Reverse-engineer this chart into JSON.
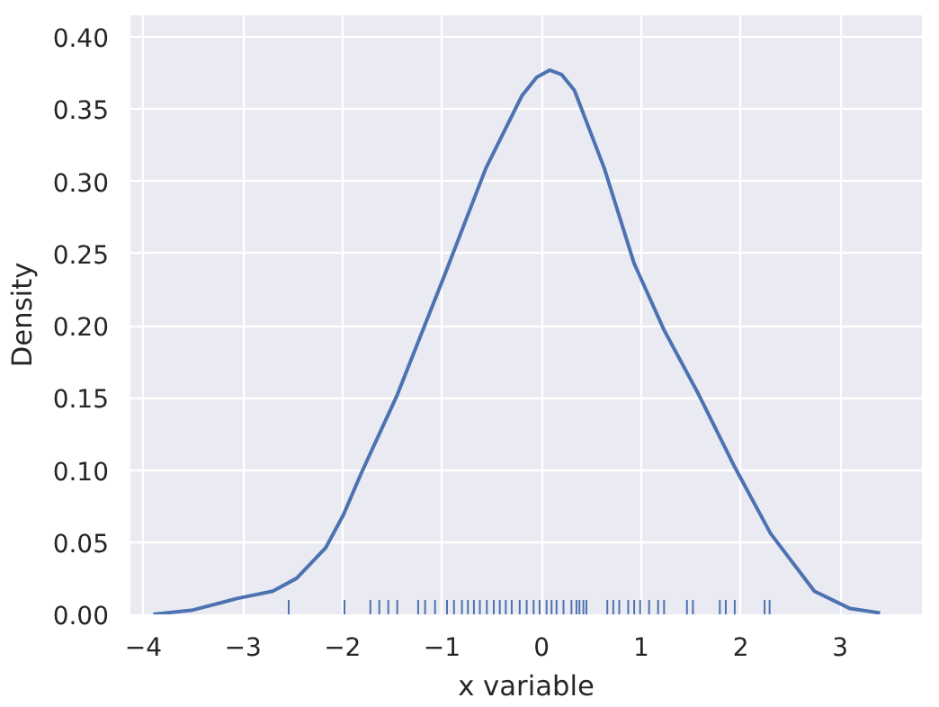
{
  "chart_data": {
    "type": "line",
    "xlabel": "x variable",
    "ylabel": "Density",
    "xlim": [
      -4.13,
      3.82
    ],
    "ylim": [
      0,
      0.415
    ],
    "xticks": [
      {
        "value": -4,
        "label": "−4"
      },
      {
        "value": -3,
        "label": "−3"
      },
      {
        "value": -2,
        "label": "−2"
      },
      {
        "value": -1,
        "label": "−1"
      },
      0,
      1,
      2,
      3
    ],
    "yticks": [
      {
        "value": 0,
        "label": "0.00"
      },
      {
        "value": 0.05,
        "label": "0.05"
      },
      {
        "value": 0.1,
        "label": "0.10"
      },
      {
        "value": 0.15,
        "label": "0.15"
      },
      {
        "value": 0.2,
        "label": "0.20"
      },
      {
        "value": 0.25,
        "label": "0.25"
      },
      {
        "value": 0.3,
        "label": "0.30"
      },
      {
        "value": 0.35,
        "label": "0.35"
      },
      {
        "value": 0.4,
        "label": "0.40"
      }
    ],
    "grid": true,
    "series": [
      {
        "color": "#4c72b0",
        "x": [
          -3.9,
          -3.5,
          -3.06,
          -2.7,
          -2.46,
          -2.17,
          -1.99,
          -1.81,
          -1.45,
          -0.98,
          -0.56,
          -0.2,
          -0.05,
          0.08,
          0.2,
          0.33,
          0.63,
          0.93,
          1.23,
          1.58,
          1.94,
          2.3,
          2.74,
          3.1,
          3.4
        ],
        "values": [
          0.0,
          0.003,
          0.011,
          0.016,
          0.025,
          0.046,
          0.069,
          0.098,
          0.152,
          0.234,
          0.309,
          0.359,
          0.372,
          0.377,
          0.374,
          0.363,
          0.309,
          0.243,
          0.197,
          0.152,
          0.102,
          0.056,
          0.016,
          0.004,
          0.001
        ]
      },
      {
        "type": "bar",
        "color": "#4c72b0",
        "x": [
          -2.54,
          -1.98,
          -1.72,
          -1.63,
          -1.54,
          -1.45,
          -1.24,
          -1.17,
          -1.07,
          -0.95,
          -0.88,
          -0.8,
          -0.74,
          -0.68,
          -0.62,
          -0.55,
          -0.48,
          -0.42,
          -0.36,
          -0.3,
          -0.22,
          -0.15,
          -0.08,
          -0.02,
          0.05,
          0.1,
          0.15,
          0.22,
          0.3,
          0.35,
          0.38,
          0.42,
          0.45,
          0.66,
          0.72,
          0.78,
          0.87,
          0.93,
          0.99,
          1.08,
          1.17,
          1.23,
          1.46,
          1.52,
          1.79,
          1.85,
          1.94,
          2.24,
          2.29
        ],
        "values": [
          0.01,
          0.01,
          0.01,
          0.01,
          0.01,
          0.01,
          0.01,
          0.01,
          0.01,
          0.01,
          0.01,
          0.01,
          0.01,
          0.01,
          0.01,
          0.01,
          0.01,
          0.01,
          0.01,
          0.01,
          0.01,
          0.01,
          0.01,
          0.01,
          0.01,
          0.01,
          0.01,
          0.01,
          0.01,
          0.01,
          0.01,
          0.01,
          0.01,
          0.01,
          0.01,
          0.01,
          0.01,
          0.01,
          0.01,
          0.01,
          0.01,
          0.01,
          0.01,
          0.01,
          0.01,
          0.01,
          0.01,
          0.01,
          0.01
        ]
      }
    ]
  }
}
